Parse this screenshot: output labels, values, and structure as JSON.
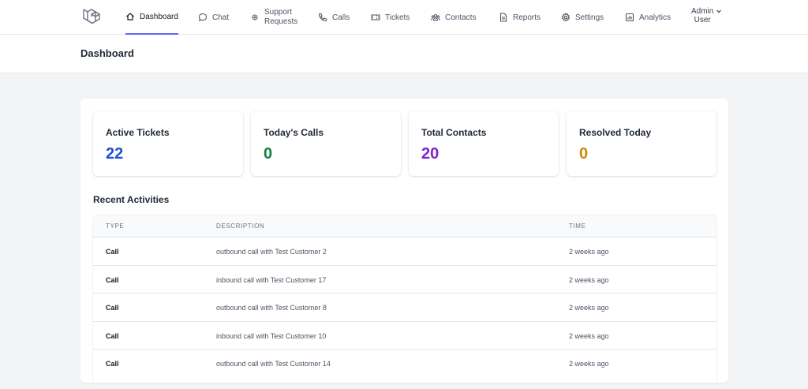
{
  "nav": {
    "items": [
      {
        "label": "Dashboard",
        "icon": "home-icon"
      },
      {
        "label": "Chat",
        "icon": "chat-bubble-icon"
      },
      {
        "label": "Support Requests",
        "icon": "support-icon"
      },
      {
        "label": "Calls",
        "icon": "phone-icon"
      },
      {
        "label": "Tickets",
        "icon": "ticket-icon"
      },
      {
        "label": "Contacts",
        "icon": "users-icon"
      },
      {
        "label": "Reports",
        "icon": "document-icon"
      },
      {
        "label": "Settings",
        "icon": "gear-icon"
      },
      {
        "label": "Analytics",
        "icon": "bar-chart-icon"
      }
    ],
    "user": {
      "line1": "Admin",
      "line2": "User"
    }
  },
  "page": {
    "title": "Dashboard"
  },
  "stats": [
    {
      "label": "Active Tickets",
      "value": "22",
      "color": "#1d4ed8"
    },
    {
      "label": "Today's Calls",
      "value": "0",
      "color": "#15803d"
    },
    {
      "label": "Total Contacts",
      "value": "20",
      "color": "#7e22ce"
    },
    {
      "label": "Resolved Today",
      "value": "0",
      "color": "#ca8a04"
    }
  ],
  "activities": {
    "title": "Recent Activities",
    "columns": {
      "type": "TYPE",
      "description": "DESCRIPTION",
      "time": "TIME"
    },
    "rows": [
      {
        "type": "Call",
        "description": "outbound call with Test Customer 2",
        "time": "2 weeks ago"
      },
      {
        "type": "Call",
        "description": "inbound call with Test Customer 17",
        "time": "2 weeks ago"
      },
      {
        "type": "Call",
        "description": "outbound call with Test Customer 8",
        "time": "2 weeks ago"
      },
      {
        "type": "Call",
        "description": "inbound call with Test Customer 10",
        "time": "2 weeks ago"
      },
      {
        "type": "Call",
        "description": "outbound call with Test Customer 14",
        "time": "2 weeks ago"
      }
    ]
  }
}
